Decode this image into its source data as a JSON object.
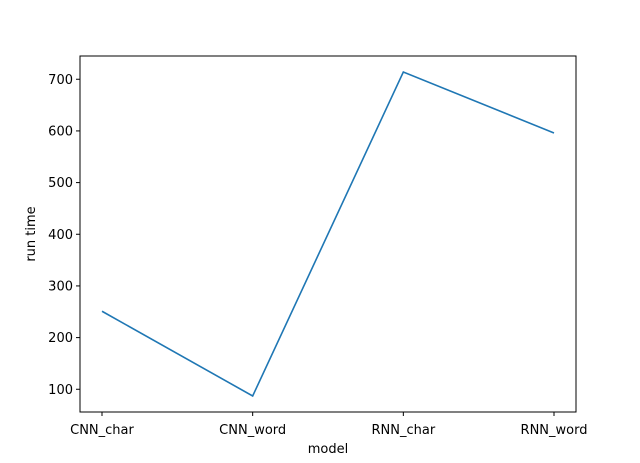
{
  "chart_data": {
    "type": "line",
    "title": "",
    "xlabel": "model",
    "ylabel": "run time",
    "categories": [
      "CNN_char",
      "CNN_word",
      "RNN_char",
      "RNN_word"
    ],
    "values": [
      251,
      87,
      714,
      596
    ],
    "ylim": [
      56,
      745
    ],
    "yticks": [
      100,
      200,
      300,
      400,
      500,
      600,
      700
    ],
    "grid": false,
    "legend": "none",
    "line_color": "#1f77b4"
  }
}
